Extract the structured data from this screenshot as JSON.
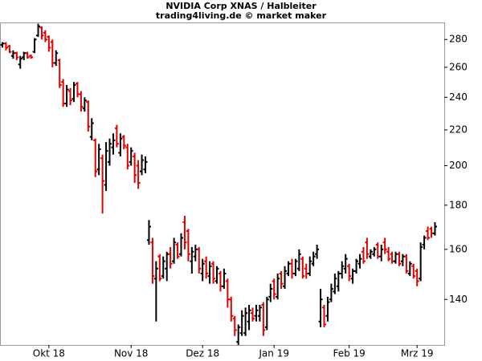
{
  "chart_data": {
    "type": "ohlc",
    "title": "NVIDIA Corp XNAS / Halbleiter",
    "subtitle": "trading4living.de © market maker",
    "categories": [
      null,
      null,
      null,
      null,
      null,
      null,
      null,
      null,
      null,
      null,
      null,
      null,
      null,
      "Okt 18",
      null,
      null,
      null,
      null,
      null,
      null,
      null,
      null,
      null,
      null,
      null,
      null,
      null,
      null,
      null,
      null,
      null,
      null,
      null,
      null,
      null,
      null,
      "Nov 18",
      null,
      null,
      null,
      null,
      null,
      null,
      null,
      null,
      null,
      null,
      null,
      null,
      null,
      null,
      null,
      null,
      null,
      null,
      null,
      "Dez 18",
      null,
      null,
      null,
      null,
      null,
      null,
      null,
      null,
      null,
      null,
      null,
      null,
      null,
      null,
      null,
      null,
      null,
      null,
      null,
      "Jan 19",
      null,
      null,
      null,
      null,
      null,
      null,
      null,
      null,
      null,
      null,
      null,
      null,
      null,
      null,
      null,
      null,
      null,
      null,
      null,
      null,
      "Feb 19",
      null,
      null,
      null,
      null,
      null,
      null,
      null,
      null,
      null,
      null,
      null,
      null,
      null,
      null,
      null,
      null,
      null,
      null,
      "Mrz 19",
      null,
      null,
      null,
      null,
      null
    ],
    "open": [
      276,
      277,
      275,
      268,
      270,
      262,
      267,
      270,
      268,
      271,
      283,
      289,
      285,
      282,
      278,
      263,
      265,
      250,
      236,
      244,
      239,
      249,
      242,
      233,
      237,
      216,
      214,
      198,
      204,
      190,
      202,
      210,
      221,
      207,
      216,
      210,
      202,
      205,
      200,
      197,
      198,
      164,
      163,
      148,
      157,
      149,
      152,
      158,
      155,
      162,
      158,
      172,
      168,
      155,
      157,
      160,
      150,
      155,
      149,
      154,
      147,
      150,
      145,
      147,
      140,
      133,
      125,
      128,
      128,
      132,
      135,
      134,
      134,
      138,
      130,
      141,
      147,
      141,
      150,
      145,
      150,
      154,
      150,
      152,
      156,
      152,
      150,
      154,
      158,
      132,
      137,
      134,
      140,
      143,
      145,
      150,
      152,
      153,
      148,
      151,
      154,
      159,
      163,
      157,
      158,
      162,
      157,
      163,
      159,
      158,
      155,
      158,
      155,
      157,
      150,
      153,
      151,
      148,
      162,
      168,
      169,
      167
    ],
    "high": [
      278,
      278,
      276,
      272,
      271,
      268,
      271,
      271,
      269,
      281,
      292,
      290,
      287,
      283,
      280,
      272,
      266,
      252,
      248,
      246,
      250,
      250,
      244,
      240,
      238,
      227,
      215,
      212,
      206,
      213,
      215,
      218,
      223,
      218,
      217,
      212,
      210,
      207,
      203,
      206,
      205,
      173,
      165,
      155,
      158,
      157,
      159,
      161,
      165,
      163,
      167,
      175,
      169,
      161,
      162,
      161,
      156,
      157,
      155,
      155,
      153,
      151,
      152,
      148,
      141,
      134,
      131,
      136,
      137,
      138,
      137,
      138,
      138,
      139,
      141,
      146,
      148,
      150,
      151,
      153,
      155,
      156,
      156,
      160,
      157,
      154,
      157,
      159,
      162,
      144,
      138,
      141,
      146,
      150,
      151,
      155,
      158,
      154,
      152,
      156,
      158,
      161,
      165,
      160,
      161,
      163,
      162,
      165,
      161,
      159,
      159,
      159,
      158,
      158,
      155,
      154,
      152,
      163,
      166,
      170,
      170,
      172
    ],
    "low": [
      274,
      272,
      270,
      266,
      265,
      259,
      265,
      266,
      266,
      270,
      282,
      280,
      278,
      271,
      260,
      261,
      246,
      234,
      234,
      235,
      237,
      240,
      231,
      231,
      219,
      214,
      194,
      195,
      176,
      187,
      200,
      206,
      210,
      205,
      209,
      198,
      200,
      191,
      188,
      195,
      196,
      162,
      146,
      132,
      147,
      148,
      147,
      152,
      154,
      156,
      157,
      160,
      155,
      150,
      155,
      150,
      147,
      148,
      146,
      146,
      146,
      143,
      144,
      137,
      132,
      127,
      124,
      127,
      127,
      129,
      132,
      132,
      132,
      127,
      129,
      139,
      140,
      140,
      144,
      144,
      149,
      148,
      149,
      151,
      148,
      148,
      149,
      153,
      156,
      130,
      130,
      132,
      139,
      142,
      143,
      148,
      150,
      147,
      146,
      150,
      152,
      154,
      156,
      156,
      157,
      156,
      155,
      158,
      155,
      154,
      154,
      153,
      153,
      150,
      149,
      148,
      145,
      147,
      160,
      164,
      165,
      166
    ],
    "close": [
      277,
      274,
      271,
      270,
      267,
      266,
      270,
      267,
      267,
      280,
      290,
      283,
      280,
      274,
      263,
      270,
      248,
      236,
      245,
      238,
      248,
      242,
      234,
      238,
      222,
      224,
      197,
      209,
      192,
      208,
      212,
      214,
      212,
      215,
      211,
      200,
      208,
      195,
      191,
      203,
      202,
      170,
      149,
      152,
      148,
      155,
      158,
      154,
      163,
      157,
      165,
      163,
      158,
      159,
      160,
      152,
      154,
      150,
      153,
      148,
      152,
      145,
      150,
      140,
      134,
      129,
      130,
      134,
      135,
      136,
      133,
      136,
      137,
      129,
      140,
      144,
      142,
      148,
      146,
      151,
      154,
      150,
      155,
      158,
      149,
      150,
      155,
      157,
      160,
      140,
      131,
      139,
      144,
      148,
      150,
      153,
      156,
      149,
      151,
      155,
      156,
      155,
      158,
      159,
      160,
      157,
      160,
      160,
      156,
      155,
      158,
      154,
      157,
      151,
      154,
      149,
      147,
      161,
      165,
      165,
      167,
      170
    ],
    "up_color": "#000000",
    "down_color": "#e00000",
    "ylim": [
      124,
      293
    ],
    "yticks": [
      140,
      160,
      180,
      200,
      220,
      240,
      260,
      280
    ],
    "log_scale": true
  }
}
